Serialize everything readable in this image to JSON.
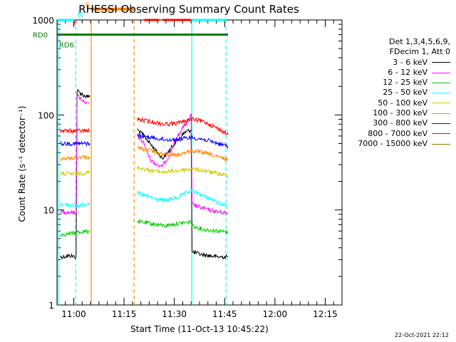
{
  "chart_data": {
    "type": "line",
    "title": "RHESSI Observing Summary Count Rates",
    "xlabel": "Start Time (11-Oct-13 10:45:22)",
    "ylabel": "Count Rate (s⁻¹ detector⁻¹)",
    "yscale": "log",
    "ylim": [
      1,
      1000
    ],
    "xlim_minutes": [
      10.0,
      95.0
    ],
    "x_ticks": [
      {
        "label": "11:00",
        "minute": 15.0
      },
      {
        "label": "11:15",
        "minute": 30.0
      },
      {
        "label": "11:30",
        "minute": 45.0
      },
      {
        "label": "11:45",
        "minute": 60.0
      },
      {
        "label": "12:00",
        "minute": 75.0
      },
      {
        "label": "12:15",
        "minute": 90.0
      }
    ],
    "y_tick_labels": [
      "1",
      "10",
      "100",
      "1000"
    ],
    "legend_header": [
      "Det 1,3,4,5,6,9,",
      "FDecim 1, Att 0"
    ],
    "series": [
      {
        "name": "3 - 6 keV",
        "color": "#000000",
        "segments": [
          [
            [
              11.0,
              3.2
            ],
            [
              14.0,
              3.3
            ],
            [
              15.7,
              3.2
            ],
            [
              16.0,
              180
            ],
            [
              17.0,
              170
            ],
            [
              18.0,
              160
            ],
            [
              19.0,
              155
            ],
            [
              19.8,
              160
            ]
          ],
          [
            [
              34.0,
              70
            ],
            [
              36.0,
              60
            ],
            [
              40.0,
              40
            ],
            [
              41.5,
              35
            ],
            [
              43.0,
              40
            ],
            [
              45.0,
              50
            ],
            [
              48.0,
              65
            ],
            [
              50.0,
              70
            ],
            [
              50.3,
              3.6
            ],
            [
              53.0,
              3.4
            ],
            [
              58.0,
              3.2
            ],
            [
              61.0,
              3.2
            ]
          ]
        ]
      },
      {
        "name": "6 - 12 keV",
        "color": "#ff00ff",
        "segments": [
          [
            [
              11.0,
              9.5
            ],
            [
              14.0,
              9.5
            ],
            [
              15.7,
              9.3
            ],
            [
              16.0,
              160
            ],
            [
              17.0,
              150
            ],
            [
              18.0,
              140
            ],
            [
              19.0,
              130
            ],
            [
              19.8,
              135
            ]
          ],
          [
            [
              34.0,
              60
            ],
            [
              36.0,
              50
            ],
            [
              37.0,
              40
            ],
            [
              38.0,
              33
            ],
            [
              40.0,
              30
            ],
            [
              41.0,
              28
            ],
            [
              43.0,
              35
            ],
            [
              45.0,
              50
            ],
            [
              47.0,
              70
            ],
            [
              49.0,
              85
            ],
            [
              50.0,
              100
            ],
            [
              50.3,
              11.5
            ],
            [
              53.0,
              10.5
            ],
            [
              58.0,
              9.5
            ],
            [
              61.0,
              9.3
            ]
          ]
        ]
      },
      {
        "name": "12 - 25 keV",
        "color": "#00cc00",
        "segments": [
          [
            [
              11.0,
              5.5
            ],
            [
              15.7,
              5.7
            ],
            [
              16.0,
              5.8
            ],
            [
              19.8,
              6.0
            ]
          ],
          [
            [
              34.0,
              7.5
            ],
            [
              38.0,
              7.2
            ],
            [
              42.0,
              6.8
            ],
            [
              46.0,
              7.2
            ],
            [
              50.0,
              7.5
            ],
            [
              50.3,
              6.8
            ],
            [
              54.0,
              6.2
            ],
            [
              58.0,
              6.0
            ],
            [
              61.0,
              5.8
            ]
          ]
        ]
      },
      {
        "name": "25 - 50 keV",
        "color": "#00ffff",
        "segments": [
          [
            [
              11.0,
              11.5
            ],
            [
              15.7,
              11.2
            ],
            [
              16.0,
              11.0
            ],
            [
              19.8,
              11.8
            ]
          ],
          [
            [
              34.0,
              15
            ],
            [
              38.0,
              13.5
            ],
            [
              42.0,
              12.5
            ],
            [
              46.0,
              13.5
            ],
            [
              50.0,
              16
            ],
            [
              53.0,
              14.5
            ],
            [
              58.0,
              12
            ],
            [
              61.0,
              11
            ]
          ]
        ]
      },
      {
        "name": "50 - 100 keV",
        "color": "#cccc00",
        "segments": [
          [
            [
              11.0,
              24
            ],
            [
              15.7,
              24
            ],
            [
              16.0,
              24
            ],
            [
              19.8,
              25
            ]
          ],
          [
            [
              34.0,
              28
            ],
            [
              38.0,
              26
            ],
            [
              42.0,
              25
            ],
            [
              46.0,
              26
            ],
            [
              50.0,
              27
            ],
            [
              54.0,
              26
            ],
            [
              58.0,
              24
            ],
            [
              61.0,
              23
            ]
          ]
        ]
      },
      {
        "name": "100 - 300 keV",
        "color": "#ff8800",
        "segments": [
          [
            [
              11.0,
              35
            ],
            [
              15.7,
              35
            ],
            [
              16.0,
              36
            ],
            [
              19.8,
              36
            ]
          ],
          [
            [
              34.0,
              45
            ],
            [
              38.0,
              42
            ],
            [
              42.0,
              38
            ],
            [
              46.0,
              38
            ],
            [
              50.0,
              42
            ],
            [
              54.0,
              40
            ],
            [
              58.0,
              36
            ],
            [
              61.0,
              34
            ]
          ]
        ]
      },
      {
        "name": "300 - 800 keV",
        "color": "#0000ff",
        "segments": [
          [
            [
              11.0,
              50
            ],
            [
              15.7,
              50
            ],
            [
              16.0,
              50
            ],
            [
              19.8,
              50
            ]
          ],
          [
            [
              34.0,
              60
            ],
            [
              38.0,
              58
            ],
            [
              42.0,
              55
            ],
            [
              46.0,
              55
            ],
            [
              50.0,
              58
            ],
            [
              54.0,
              55
            ],
            [
              58.0,
              50
            ],
            [
              61.0,
              47
            ]
          ]
        ]
      },
      {
        "name": "800 - 7000 keV",
        "color": "#ff0000",
        "segments": [
          [
            [
              11.0,
              68
            ],
            [
              15.7,
              68
            ],
            [
              16.0,
              68
            ],
            [
              19.8,
              68
            ]
          ],
          [
            [
              34.0,
              90
            ],
            [
              38.0,
              85
            ],
            [
              42.0,
              80
            ],
            [
              46.0,
              82
            ],
            [
              50.0,
              90
            ],
            [
              54.0,
              85
            ],
            [
              58.0,
              72
            ],
            [
              61.0,
              62
            ]
          ]
        ]
      },
      {
        "name": "7000 - 15000 keV",
        "color": "#888800",
        "segments": []
      }
    ],
    "vertical_markers": [
      {
        "minute": 10.3,
        "color": "#00ffff",
        "style": "solid"
      },
      {
        "minute": 15.6,
        "color": "#00ffff",
        "style": "dashed"
      },
      {
        "minute": 20.2,
        "color": "#ff8800",
        "style": "solid"
      },
      {
        "minute": 33.0,
        "color": "#ff8800",
        "style": "dashed"
      },
      {
        "minute": 50.2,
        "color": "#00ffff",
        "style": "solid"
      },
      {
        "minute": 60.4,
        "color": "#00ffff",
        "style": "dashed"
      }
    ],
    "flag_bars": [
      {
        "name": "night",
        "color": "#00ffff",
        "y": 1000,
        "start": 10.3,
        "end": 15.6
      },
      {
        "name": "night",
        "color": "#00ffff",
        "y": 1000,
        "start": 50.2,
        "end": 60.4
      },
      {
        "name": "saa",
        "color": "#ff8800",
        "y": 1300,
        "start": 20.2,
        "end": 33.0
      },
      {
        "name": "flare",
        "color": "#ff0000",
        "y": 1000,
        "start": 36.0,
        "end": 40.5
      },
      {
        "name": "flare",
        "color": "#ff0000",
        "y": 1000,
        "start": 41.5,
        "end": 50.0
      },
      {
        "name": "decim",
        "color": "#007700",
        "y": 700,
        "start": 10.0,
        "end": 61.0
      }
    ],
    "flag_labels": [
      {
        "text": "F",
        "color": "#ff0000",
        "minute": 15.0,
        "y": 950
      },
      {
        "text": "N",
        "color": "#00ffff",
        "minute": 16.2,
        "y": 1150
      },
      {
        "text": "S",
        "color": "#ff8800",
        "minute": 18.5,
        "y": 1450
      },
      {
        "text": "RD0",
        "color": "#007700",
        "side": "left"
      },
      {
        "text": "RD6",
        "color": "#007700",
        "minute": 10.6,
        "y": 550
      }
    ],
    "timestamp": "22-Oct-2021 22:12"
  }
}
